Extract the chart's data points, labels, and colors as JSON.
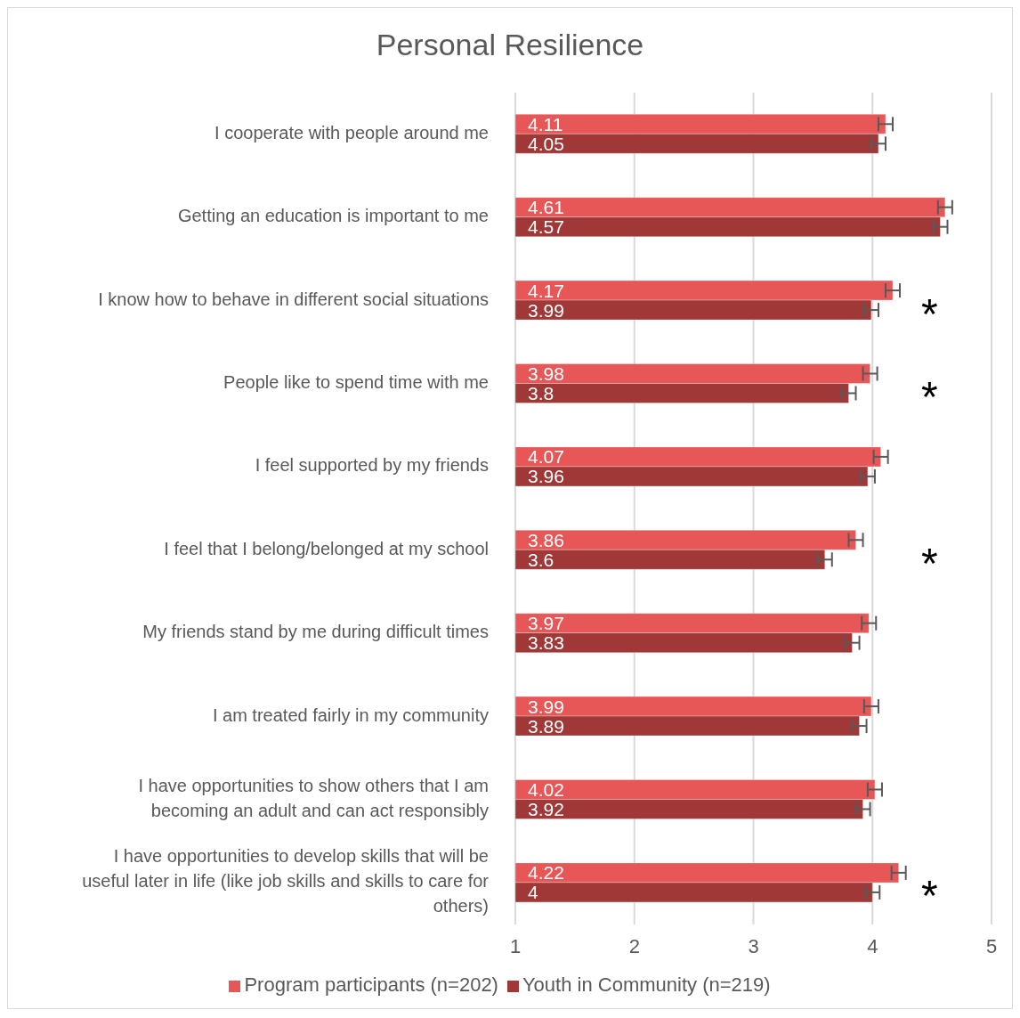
{
  "chart_data": {
    "type": "bar",
    "orientation": "horizontal",
    "title": "Personal Resilience",
    "categories": [
      "I cooperate with people around me",
      "Getting an education is important to me",
      "I know how to behave in different social situations",
      "People like to spend time with me",
      "I feel supported by my friends",
      "I feel that I belong/belonged at my school",
      "My friends stand by me during difficult times",
      "I am treated fairly in my community",
      "I have opportunities to show others that I am becoming an adult and can act responsibly",
      "I have opportunities to develop skills that will be useful later in life (like job skills and skills to care for others)"
    ],
    "series": [
      {
        "name": "Program participants (n=202)",
        "color": "#e85757",
        "values": [
          4.11,
          4.61,
          4.17,
          3.98,
          4.07,
          3.86,
          3.97,
          3.99,
          4.02,
          4.22
        ],
        "errors": [
          0.06,
          0.06,
          0.06,
          0.06,
          0.06,
          0.06,
          0.06,
          0.06,
          0.06,
          0.06
        ]
      },
      {
        "name": "Youth in Community (n=219)",
        "color": "#a03838",
        "values": [
          4.05,
          4.57,
          3.99,
          3.8,
          3.96,
          3.6,
          3.83,
          3.89,
          3.92,
          4
        ],
        "errors": [
          0.06,
          0.06,
          0.06,
          0.06,
          0.06,
          0.06,
          0.06,
          0.06,
          0.06,
          0.06
        ]
      }
    ],
    "xlim": [
      1,
      5
    ],
    "xticks": [
      1,
      2,
      3,
      4,
      5
    ],
    "grid": "x",
    "legend": "bottom",
    "data_labels": true,
    "annotations": [
      "*",
      "*",
      "*",
      "*"
    ]
  }
}
